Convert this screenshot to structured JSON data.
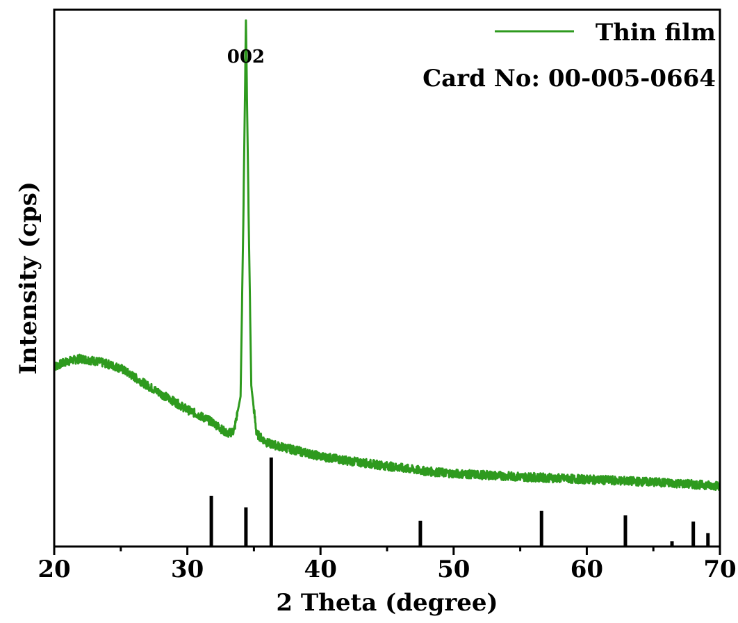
{
  "chart_data": {
    "type": "line",
    "xlabel": "2 Theta (degree)",
    "ylabel": "Intensity (cps)",
    "xlim": [
      20,
      70
    ],
    "ylim": [
      0,
      100
    ],
    "x_ticks": [
      "20",
      "30",
      "40",
      "50",
      "60",
      "70"
    ],
    "y_ticks_shown": false,
    "grid": false,
    "legend": {
      "placement": "top-right",
      "entries": [
        "Thin film"
      ]
    },
    "card_label": "Card No: 00-005-0664",
    "annotations": [
      {
        "text": "002",
        "x": 34.4
      }
    ],
    "series": [
      {
        "name": "Thin film",
        "color": "#2e9a1e",
        "x": [
          20,
          21,
          22,
          23,
          24,
          25,
          26,
          27,
          28,
          29,
          30,
          31,
          32,
          33,
          33.5,
          34.0,
          34.2,
          34.4,
          34.6,
          34.8,
          35.2,
          36,
          37,
          38,
          40,
          42,
          45,
          48,
          50,
          55,
          60,
          65,
          70
        ],
        "y": [
          33.5,
          34.5,
          35.0,
          34.6,
          34.0,
          33.2,
          31.6,
          30.0,
          28.5,
          27.0,
          25.5,
          24.3,
          23.0,
          21.0,
          21.5,
          28.0,
          60.0,
          98.0,
          62.0,
          30.0,
          21.0,
          19.3,
          18.6,
          18.0,
          16.8,
          16.0,
          15.0,
          14.0,
          13.6,
          13.0,
          12.5,
          12.0,
          11.3
        ]
      }
    ],
    "reference_card": {
      "name": "Card No: 00-005-0664",
      "color": "#000000",
      "positions": [
        31.8,
        34.4,
        36.3,
        47.5,
        56.6,
        62.9,
        66.4,
        68.0,
        69.1
      ],
      "relative_intensity": [
        57,
        44,
        100,
        29,
        40,
        35,
        6,
        28,
        15
      ]
    }
  }
}
